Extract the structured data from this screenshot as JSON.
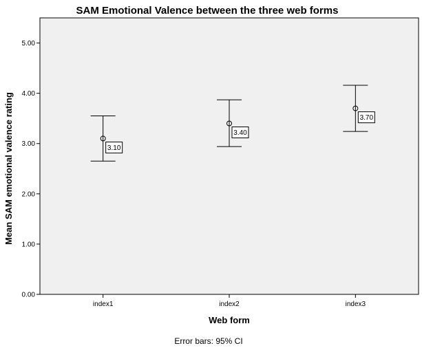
{
  "chart_data": {
    "type": "scatter",
    "title": "SAM Emotional Valence between the three web forms",
    "xlabel": "Web form",
    "ylabel": "Mean SAM emotional valence rating",
    "categories": [
      "index1",
      "index2",
      "index3"
    ],
    "values": [
      3.1,
      3.4,
      3.7
    ],
    "error_bars": {
      "lower": [
        2.65,
        2.94,
        3.24
      ],
      "upper": [
        3.55,
        3.87,
        4.16
      ]
    },
    "data_labels": [
      "3.10",
      "3.40",
      "3.70"
    ],
    "ylim": [
      0,
      5.5
    ],
    "yticks": [
      0,
      1,
      2,
      3,
      4,
      5
    ],
    "ytick_labels": [
      "0.00",
      "1.00",
      "2.00",
      "3.00",
      "4.00",
      "5.00"
    ],
    "footnote": "Error bars: 95% CI",
    "grid": false,
    "colors": {
      "plot_background": "#f0f0f0",
      "marker": "#000000"
    }
  }
}
